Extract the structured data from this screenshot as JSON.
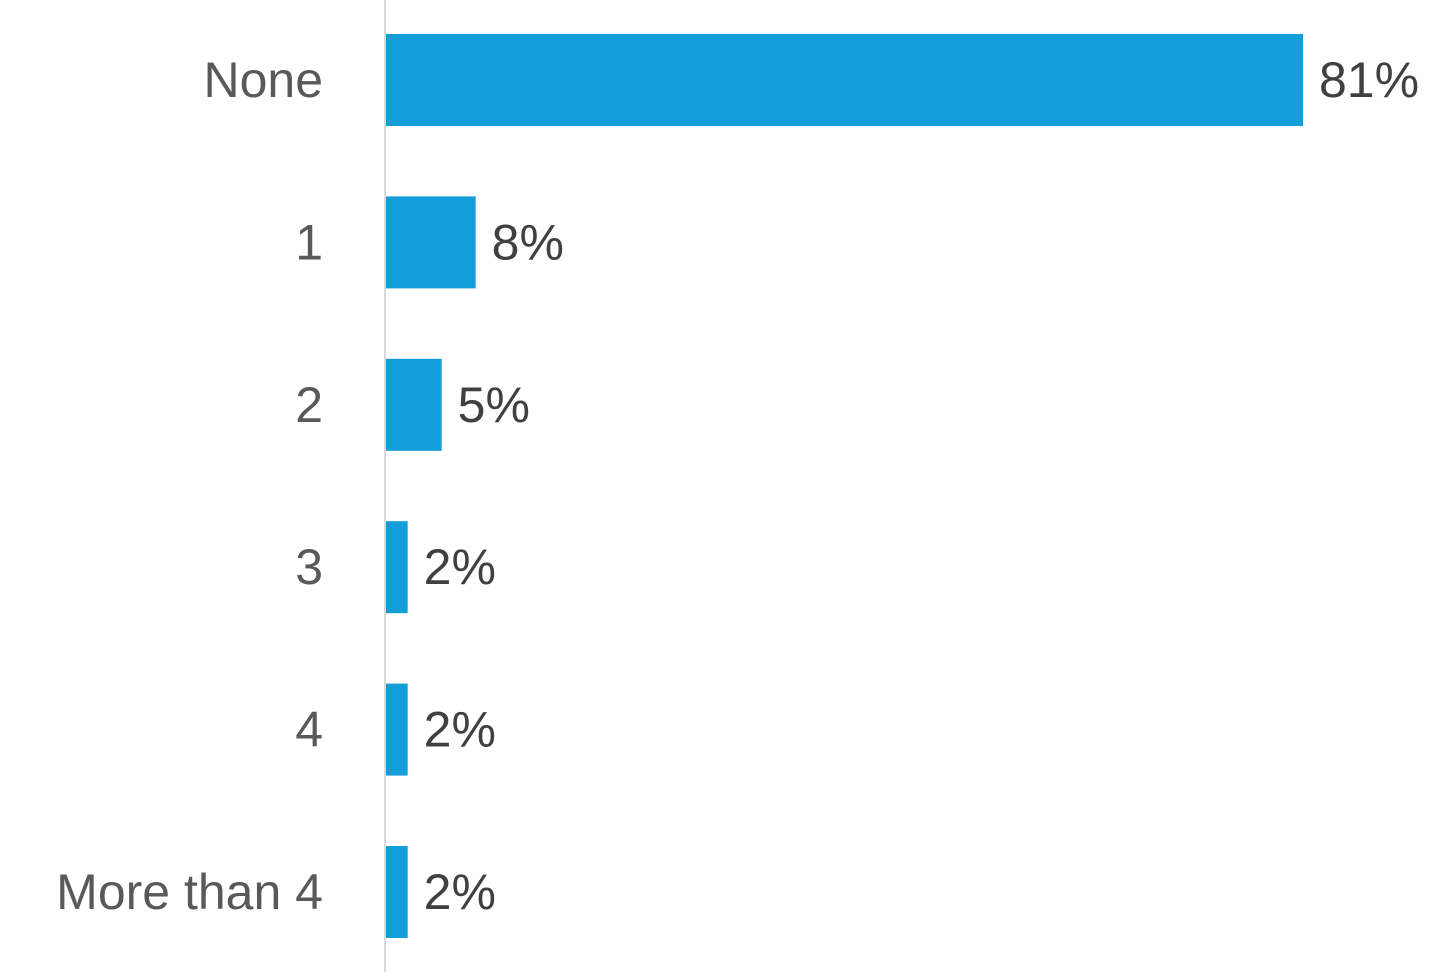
{
  "chart_data": {
    "type": "bar",
    "orientation": "horizontal",
    "categories": [
      "None",
      "1",
      "2",
      "3",
      "4",
      "More than 4"
    ],
    "values": [
      81,
      8,
      5,
      2,
      2,
      2
    ],
    "data_labels": [
      "81%",
      "8%",
      "5%",
      "2%",
      "2%",
      "2%"
    ],
    "unit": "%",
    "title": "",
    "xlabel": "",
    "ylabel": "",
    "xlim": [
      0,
      81
    ],
    "grid": false,
    "legend": "none",
    "colors": {
      "bar": "#149ED9",
      "axis": "#D9D9D9",
      "category_text": "#595959",
      "value_text": "#404040"
    }
  }
}
